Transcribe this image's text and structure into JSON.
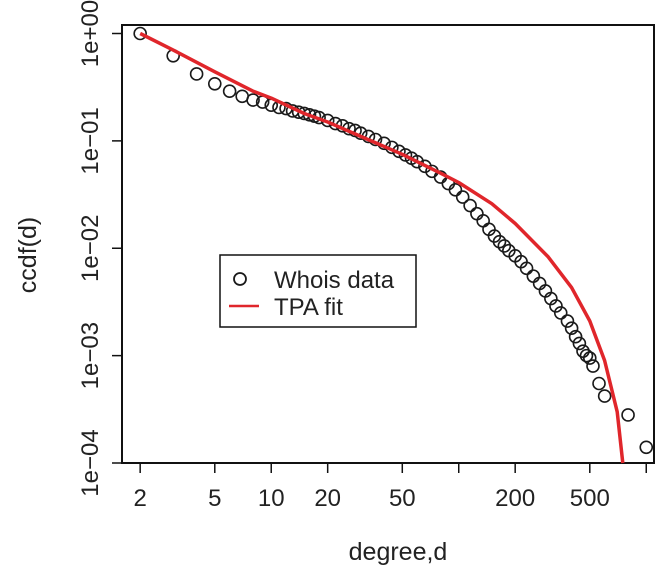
{
  "chart_data": {
    "type": "scatter",
    "title": "",
    "xlabel": "degree,d",
    "ylabel": "ccdf(d)",
    "xscale": "log",
    "yscale": "log",
    "xlim": [
      1.6,
      1100
    ],
    "ylim": [
      0.0001,
      1.2
    ],
    "grid": false,
    "legend_position": "center-left",
    "colors": {
      "points": "#1a1a1a",
      "fit": "#e0262b",
      "axis": "#111111"
    },
    "x_ticks": [
      {
        "value": 2,
        "label": "2"
      },
      {
        "value": 5,
        "label": "5"
      },
      {
        "value": 10,
        "label": "10"
      },
      {
        "value": 20,
        "label": "20"
      },
      {
        "value": 50,
        "label": "50"
      },
      {
        "value": 100,
        "label": ""
      },
      {
        "value": 200,
        "label": "200"
      },
      {
        "value": 500,
        "label": "500"
      },
      {
        "value": 1000,
        "label": ""
      }
    ],
    "y_ticks": [
      {
        "value": 1,
        "label": "1e+00"
      },
      {
        "value": 0.1,
        "label": "1e−01"
      },
      {
        "value": 0.01,
        "label": "1e−02"
      },
      {
        "value": 0.001,
        "label": "1e−03"
      },
      {
        "value": 0.0001,
        "label": "1e−04"
      }
    ],
    "series": [
      {
        "name": "Whois data",
        "type": "scatter",
        "x": [
          2,
          3,
          4,
          5,
          6,
          7,
          8,
          9,
          10,
          11,
          12,
          13,
          14,
          15,
          16,
          17,
          18,
          20,
          22,
          24,
          26,
          28,
          30,
          33,
          36,
          40,
          44,
          48,
          52,
          56,
          60,
          66,
          72,
          80,
          88,
          96,
          105,
          115,
          125,
          135,
          145,
          155,
          165,
          175,
          185,
          200,
          215,
          230,
          250,
          270,
          290,
          310,
          330,
          350,
          380,
          400,
          420,
          440,
          460,
          480,
          500,
          520,
          560,
          600,
          800,
          1000
        ],
        "y": [
          1.0,
          0.62,
          0.42,
          0.34,
          0.29,
          0.26,
          0.24,
          0.23,
          0.215,
          0.205,
          0.2,
          0.19,
          0.185,
          0.18,
          0.175,
          0.17,
          0.165,
          0.155,
          0.145,
          0.138,
          0.13,
          0.125,
          0.118,
          0.11,
          0.103,
          0.095,
          0.087,
          0.08,
          0.074,
          0.069,
          0.064,
          0.058,
          0.052,
          0.046,
          0.04,
          0.035,
          0.03,
          0.025,
          0.021,
          0.018,
          0.015,
          0.013,
          0.0115,
          0.0105,
          0.0095,
          0.0085,
          0.0075,
          0.0065,
          0.0055,
          0.0047,
          0.004,
          0.0034,
          0.0029,
          0.0025,
          0.0021,
          0.0018,
          0.0015,
          0.0013,
          0.0011,
          0.001,
          0.00095,
          0.0008,
          0.00055,
          0.00042,
          0.00028,
          0.00014
        ]
      },
      {
        "name": "TPA fit",
        "type": "line",
        "x": [
          2,
          3,
          5,
          8,
          10,
          15,
          20,
          30,
          50,
          80,
          100,
          150,
          200,
          300,
          400,
          500,
          600,
          700,
          750
        ],
        "y": [
          1.0,
          0.7,
          0.44,
          0.29,
          0.25,
          0.18,
          0.15,
          0.11,
          0.075,
          0.05,
          0.041,
          0.026,
          0.017,
          0.0083,
          0.0043,
          0.0021,
          0.0009,
          0.0003,
          0.0001
        ]
      }
    ]
  }
}
